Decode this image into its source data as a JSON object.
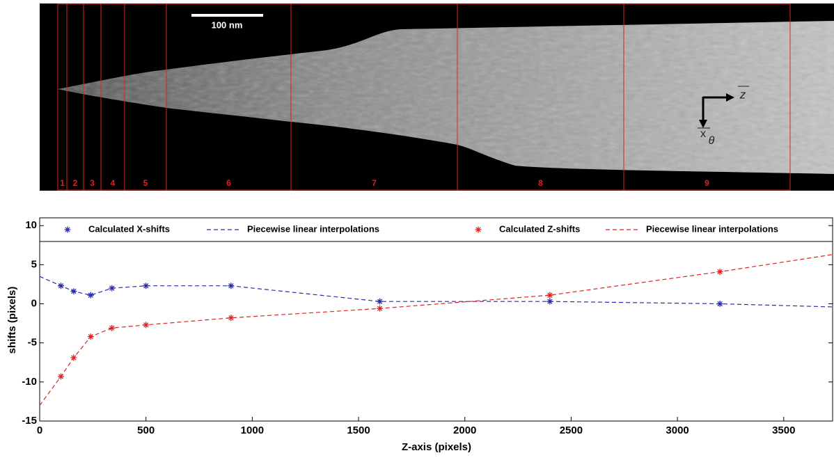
{
  "image": {
    "scale_bar": "100 nm",
    "regions": [
      "1",
      "2",
      "3",
      "4",
      "5",
      "6",
      "7",
      "8",
      "9"
    ],
    "axis_z": "z",
    "axis_x": "x",
    "axis_x_sub": "θ"
  },
  "chart_data": {
    "type": "scatter",
    "xlabel": "Z-axis (pixels)",
    "ylabel": "shifts (pixels)",
    "xlim": [
      0,
      3730
    ],
    "ylim": [
      -15,
      11
    ],
    "xticks": [
      0,
      500,
      1000,
      1500,
      2000,
      2500,
      3000,
      3500
    ],
    "yticks": [
      -15,
      -10,
      -5,
      0,
      5,
      10
    ],
    "legend": "top",
    "series": [
      {
        "name": "Calculated X-shifts",
        "color": "#2a2aa8",
        "style": "markers",
        "x": [
          100,
          160,
          240,
          340,
          500,
          900,
          1600,
          2400,
          3200
        ],
        "values": [
          2.3,
          1.6,
          1.1,
          2.0,
          2.3,
          2.3,
          0.3,
          0.3,
          0.0
        ]
      },
      {
        "name": "Piecewise linear interpolations",
        "color": "#2a2aa8",
        "style": "dashed",
        "x": [
          0,
          100,
          160,
          240,
          340,
          500,
          900,
          1600,
          2400,
          3200,
          3730
        ],
        "values": [
          3.5,
          2.3,
          1.6,
          1.1,
          2.0,
          2.3,
          2.3,
          0.3,
          0.3,
          0.0,
          -0.4
        ]
      },
      {
        "name": "Calculated Z-shifts",
        "color": "#e02020",
        "style": "markers",
        "x": [
          100,
          160,
          240,
          340,
          500,
          900,
          1600,
          2400,
          3200
        ],
        "values": [
          -9.3,
          -6.9,
          -4.2,
          -3.1,
          -2.7,
          -1.8,
          -0.6,
          1.1,
          4.1
        ]
      },
      {
        "name": "Piecewise linear interpolations",
        "color": "#e02020",
        "style": "dashed",
        "x": [
          0,
          100,
          160,
          240,
          340,
          500,
          900,
          1600,
          2400,
          3200,
          3730
        ],
        "values": [
          -13,
          -9.3,
          -6.9,
          -4.2,
          -3.1,
          -2.7,
          -1.8,
          -0.6,
          1.1,
          4.1,
          6.3
        ]
      }
    ]
  }
}
